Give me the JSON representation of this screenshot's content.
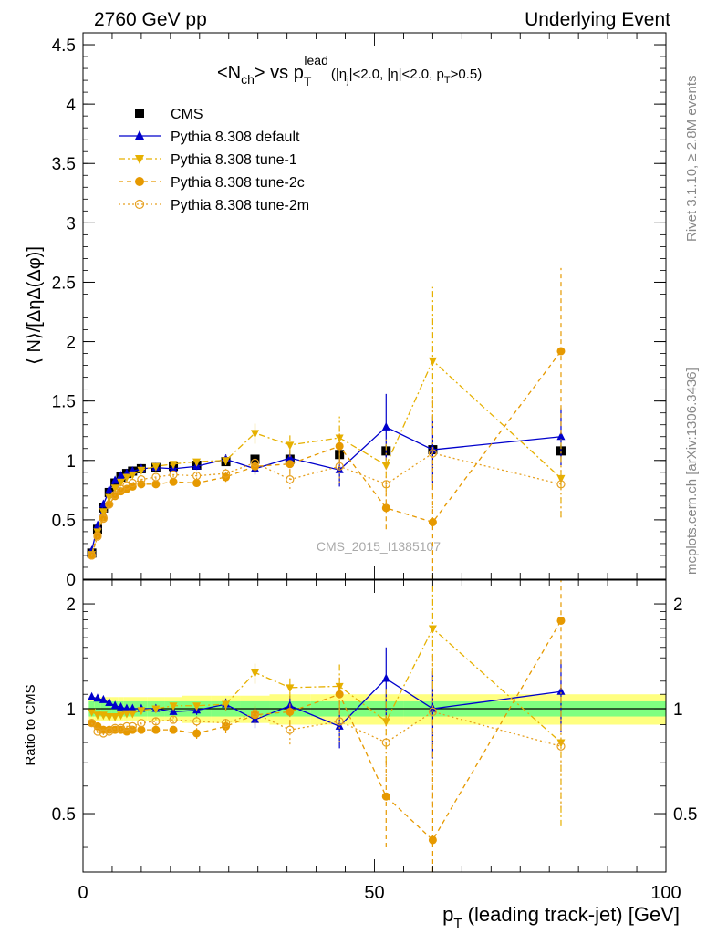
{
  "header": {
    "left": "2760 GeV pp",
    "right": "Underlying Event"
  },
  "side_text": {
    "top": "Rivet 3.1.10, ≥ 2.8M events",
    "bottom": "mcplots.cern.ch [arXiv:1306.3436]"
  },
  "watermark": "CMS_2015_I1385107",
  "title": {
    "main": "<N",
    "sub_ch": "ch",
    "mid": "> vs p",
    "sub_T": "T",
    "sup_lead": "lead",
    "cond_a": "(|η",
    "cond_sub_j": "j",
    "cond_b": "|<2.0, |η|<2.0, p",
    "cond_sub_T": "T",
    "cond_c": ">0.5)"
  },
  "colors": {
    "cms": "#000000",
    "default": "#0000cc",
    "tune1": "#e6b000",
    "tune2c": "#e69900",
    "tune2m": "#e6a020",
    "band_inner": "#80ff80",
    "band_outer": "#ffff80"
  },
  "chart_data": [
    {
      "type": "scatter",
      "panel": "main",
      "ylabel": "⟨ N⟩/[ΔηΔ(Δφ)]",
      "xlim": [
        0,
        100
      ],
      "ylim": [
        0,
        4.6
      ],
      "yticks": [
        0,
        0.5,
        1,
        1.5,
        2,
        2.5,
        3,
        3.5,
        4,
        4.5
      ],
      "ytick_labels": [
        "0",
        "0.5",
        "1",
        "1.5",
        "2",
        "2.5",
        "3",
        "3.5",
        "4",
        "4.5"
      ],
      "legend_position": "top-left",
      "series": [
        {
          "name": "CMS",
          "style": "data",
          "x": [
            1.5,
            2.5,
            3.5,
            4.5,
            5.5,
            6.5,
            7.5,
            8.5,
            10,
            12.5,
            15.5,
            19.5,
            24.5,
            29.5,
            35.5,
            44,
            52,
            60,
            82
          ],
          "y": [
            0.22,
            0.42,
            0.6,
            0.73,
            0.81,
            0.86,
            0.89,
            0.91,
            0.93,
            0.94,
            0.95,
            0.96,
            0.99,
            1.01,
            1.01,
            1.05,
            1.08,
            1.09,
            1.08
          ],
          "err": [
            0.02,
            0.02,
            0.02,
            0.02,
            0.02,
            0.02,
            0.02,
            0.02,
            0.02,
            0.02,
            0.02,
            0.03,
            0.03,
            0.03,
            0.04,
            0.04,
            0.05,
            0.06,
            0.05
          ]
        },
        {
          "name": "Pythia 8.308 default",
          "style": "line-solid-triangle-up",
          "x": [
            1.5,
            2.5,
            3.5,
            4.5,
            5.5,
            6.5,
            7.5,
            8.5,
            10,
            12.5,
            15.5,
            19.5,
            24.5,
            29.5,
            35.5,
            44,
            52,
            60,
            82
          ],
          "y": [
            0.24,
            0.45,
            0.63,
            0.75,
            0.83,
            0.87,
            0.89,
            0.91,
            0.93,
            0.94,
            0.93,
            0.95,
            1.01,
            0.93,
            1.02,
            0.92,
            1.28,
            1.09,
            1.2
          ],
          "err": [
            0.01,
            0.01,
            0.01,
            0.01,
            0.01,
            0.01,
            0.01,
            0.01,
            0.01,
            0.02,
            0.02,
            0.03,
            0.04,
            0.05,
            0.07,
            0.14,
            0.28,
            0.28,
            0.24
          ]
        },
        {
          "name": "Pythia 8.308 tune-1",
          "style": "line-dashdot-triangle-down",
          "x": [
            1.5,
            2.5,
            3.5,
            4.5,
            5.5,
            6.5,
            7.5,
            8.5,
            10,
            12.5,
            15.5,
            19.5,
            24.5,
            29.5,
            35.5,
            44,
            52,
            60,
            82
          ],
          "y": [
            0.21,
            0.4,
            0.57,
            0.69,
            0.77,
            0.82,
            0.86,
            0.88,
            0.92,
            0.95,
            0.97,
            0.99,
            1.0,
            1.23,
            1.13,
            1.19,
            0.96,
            1.84,
            0.85
          ],
          "err": [
            0.01,
            0.01,
            0.01,
            0.01,
            0.01,
            0.01,
            0.01,
            0.01,
            0.01,
            0.02,
            0.02,
            0.03,
            0.04,
            0.09,
            0.08,
            0.18,
            0.22,
            0.62,
            0.33
          ]
        },
        {
          "name": "Pythia 8.308 tune-2c",
          "style": "line-dashed-circle-filled",
          "x": [
            1.5,
            2.5,
            3.5,
            4.5,
            5.5,
            6.5,
            7.5,
            8.5,
            10,
            12.5,
            15.5,
            19.5,
            24.5,
            29.5,
            35.5,
            44,
            52,
            60,
            82
          ],
          "y": [
            0.2,
            0.37,
            0.52,
            0.63,
            0.7,
            0.74,
            0.76,
            0.78,
            0.8,
            0.8,
            0.82,
            0.81,
            0.86,
            0.95,
            0.97,
            1.12,
            0.6,
            0.48,
            1.92
          ],
          "err": [
            0.01,
            0.01,
            0.01,
            0.01,
            0.01,
            0.01,
            0.01,
            0.01,
            0.01,
            0.02,
            0.02,
            0.03,
            0.04,
            0.06,
            0.08,
            0.14,
            0.18,
            0.55,
            0.7
          ]
        },
        {
          "name": "Pythia 8.308 tune-2m",
          "style": "line-dotted-circle-open",
          "x": [
            1.5,
            2.5,
            3.5,
            4.5,
            5.5,
            6.5,
            7.5,
            8.5,
            10,
            12.5,
            15.5,
            19.5,
            24.5,
            29.5,
            35.5,
            44,
            52,
            60,
            82
          ],
          "y": [
            0.2,
            0.36,
            0.51,
            0.63,
            0.71,
            0.76,
            0.79,
            0.81,
            0.84,
            0.86,
            0.88,
            0.87,
            0.89,
            0.98,
            0.84,
            0.95,
            0.8,
            1.06,
            0.8
          ],
          "err": [
            0.01,
            0.01,
            0.01,
            0.01,
            0.01,
            0.01,
            0.01,
            0.01,
            0.01,
            0.02,
            0.02,
            0.03,
            0.04,
            0.06,
            0.08,
            0.14,
            0.18,
            0.5,
            0.28
          ]
        }
      ]
    },
    {
      "type": "scatter",
      "panel": "ratio",
      "ylabel": "Ratio to CMS",
      "xlabel_main": "p",
      "xlabel_sub": "T",
      "xlabel_rest": " (leading track-jet) [GeV]",
      "xlim": [
        0,
        100
      ],
      "ylim": [
        0.34,
        2.34
      ],
      "xticks": [
        0,
        50,
        100
      ],
      "xtick_labels": [
        "0",
        "50",
        "100"
      ],
      "yticks": [
        0.5,
        1,
        2
      ],
      "ytick_labels": [
        "0.5",
        "1",
        "2"
      ],
      "series": [
        {
          "name": "Pythia 8.308 default",
          "x": [
            1.5,
            2.5,
            3.5,
            4.5,
            5.5,
            6.5,
            7.5,
            8.5,
            10,
            12.5,
            15.5,
            19.5,
            24.5,
            29.5,
            35.5,
            44,
            52,
            60,
            82
          ],
          "y": [
            1.08,
            1.07,
            1.06,
            1.04,
            1.02,
            1.01,
            1.0,
            1.0,
            1.0,
            1.0,
            0.98,
            0.99,
            1.03,
            0.93,
            1.02,
            0.89,
            1.22,
            1.0,
            1.12
          ],
          "err": [
            0.01,
            0.01,
            0.01,
            0.01,
            0.01,
            0.01,
            0.01,
            0.01,
            0.01,
            0.02,
            0.02,
            0.03,
            0.04,
            0.05,
            0.07,
            0.12,
            0.28,
            0.28,
            0.26
          ]
        },
        {
          "name": "Pythia 8.308 tune-1",
          "x": [
            1.5,
            2.5,
            3.5,
            4.5,
            5.5,
            6.5,
            7.5,
            8.5,
            10,
            12.5,
            15.5,
            19.5,
            24.5,
            29.5,
            35.5,
            44,
            52,
            60,
            82
          ],
          "y": [
            0.98,
            0.96,
            0.96,
            0.95,
            0.95,
            0.96,
            0.97,
            0.97,
            0.99,
            1.0,
            1.02,
            1.02,
            1.03,
            1.27,
            1.15,
            1.16,
            0.92,
            1.7,
            0.8
          ],
          "err": [
            0.01,
            0.01,
            0.01,
            0.01,
            0.01,
            0.01,
            0.01,
            0.01,
            0.01,
            0.02,
            0.02,
            0.03,
            0.04,
            0.09,
            0.08,
            0.18,
            0.22,
            0.55,
            0.34
          ]
        },
        {
          "name": "Pythia 8.308 tune-2c",
          "x": [
            1.5,
            2.5,
            3.5,
            4.5,
            5.5,
            6.5,
            7.5,
            8.5,
            10,
            12.5,
            15.5,
            19.5,
            24.5,
            29.5,
            35.5,
            44,
            52,
            60,
            82
          ],
          "y": [
            0.91,
            0.89,
            0.87,
            0.87,
            0.87,
            0.87,
            0.86,
            0.87,
            0.87,
            0.87,
            0.87,
            0.85,
            0.89,
            0.96,
            0.98,
            1.1,
            0.56,
            0.42,
            1.79
          ],
          "err": [
            0.01,
            0.01,
            0.01,
            0.01,
            0.01,
            0.01,
            0.01,
            0.01,
            0.01,
            0.02,
            0.02,
            0.03,
            0.04,
            0.06,
            0.08,
            0.13,
            0.16,
            0.5,
            0.65
          ]
        },
        {
          "name": "Pythia 8.308 tune-2m",
          "x": [
            1.5,
            2.5,
            3.5,
            4.5,
            5.5,
            6.5,
            7.5,
            8.5,
            10,
            12.5,
            15.5,
            19.5,
            24.5,
            29.5,
            35.5,
            44,
            52,
            60,
            82
          ],
          "y": [
            0.91,
            0.86,
            0.85,
            0.86,
            0.88,
            0.88,
            0.89,
            0.89,
            0.91,
            0.92,
            0.93,
            0.92,
            0.91,
            0.97,
            0.87,
            0.92,
            0.8,
            0.98,
            0.78
          ],
          "err": [
            0.01,
            0.01,
            0.01,
            0.01,
            0.01,
            0.01,
            0.01,
            0.01,
            0.01,
            0.02,
            0.02,
            0.03,
            0.04,
            0.06,
            0.08,
            0.12,
            0.16,
            0.46,
            0.26
          ]
        }
      ],
      "bands": {
        "x_edges": [
          1,
          2,
          3,
          4,
          5,
          6,
          7,
          8,
          9,
          11,
          14,
          17,
          22,
          27,
          32,
          39,
          49,
          55,
          65,
          100
        ],
        "inner_halfwidth": [
          0.05,
          0.05,
          0.05,
          0.05,
          0.05,
          0.05,
          0.05,
          0.05,
          0.05,
          0.05,
          0.05,
          0.05,
          0.05,
          0.05,
          0.05,
          0.05,
          0.05,
          0.05,
          0.05
        ],
        "outer_halfwidth": [
          0.08,
          0.08,
          0.08,
          0.08,
          0.08,
          0.08,
          0.08,
          0.08,
          0.08,
          0.08,
          0.08,
          0.09,
          0.09,
          0.09,
          0.1,
          0.1,
          0.1,
          0.1,
          0.1
        ]
      }
    }
  ]
}
